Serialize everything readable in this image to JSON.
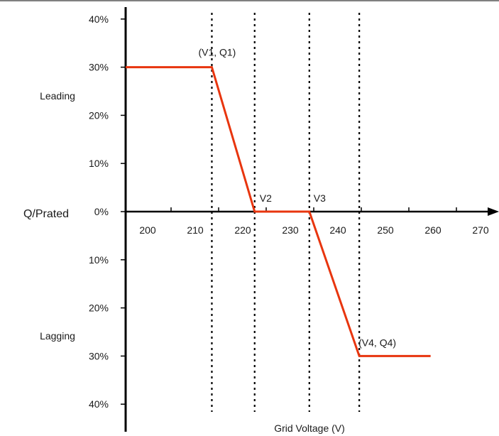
{
  "chart_data": {
    "type": "line",
    "title": "",
    "xlabel": "Grid Voltage (V)",
    "ylabel": "Q/Prated",
    "xticks": [
      200,
      210,
      220,
      230,
      240,
      250,
      260,
      270
    ],
    "xlim": [
      195,
      275
    ],
    "ylim": [
      -40,
      40
    ],
    "yticks": [
      {
        "value": 40,
        "label": "40%"
      },
      {
        "value": 30,
        "label": "30%"
      },
      {
        "value": 20,
        "label": "20%"
      },
      {
        "value": 10,
        "label": "10%"
      },
      {
        "value": 0,
        "label": "0%"
      },
      {
        "value": -10,
        "label": "10%"
      },
      {
        "value": -20,
        "label": "20%"
      },
      {
        "value": -30,
        "label": "30%"
      },
      {
        "value": -40,
        "label": "40%"
      }
    ],
    "side_labels": {
      "upper": "Leading",
      "lower": "Lagging"
    },
    "series": [
      {
        "color": "#e8350e",
        "points": [
          [
            195,
            30
          ],
          [
            213.5,
            30
          ],
          [
            222.5,
            0
          ],
          [
            234,
            0
          ],
          [
            244.5,
            -30
          ],
          [
            259.5,
            -30
          ]
        ]
      }
    ],
    "reference_lines": [
      {
        "x": 213.5
      },
      {
        "x": 222.5
      },
      {
        "x": 234
      },
      {
        "x": 244.5
      }
    ],
    "annotations": [
      {
        "text": "(V1, Q1)",
        "x": 213.5,
        "y": 30
      },
      {
        "text": "V2",
        "x": 222.5,
        "y": 0
      },
      {
        "text": "V3",
        "x": 234,
        "y": 0
      },
      {
        "text": "(V4, Q4)",
        "x": 244.5,
        "y": -30
      }
    ],
    "grid": false,
    "legend": "none"
  }
}
